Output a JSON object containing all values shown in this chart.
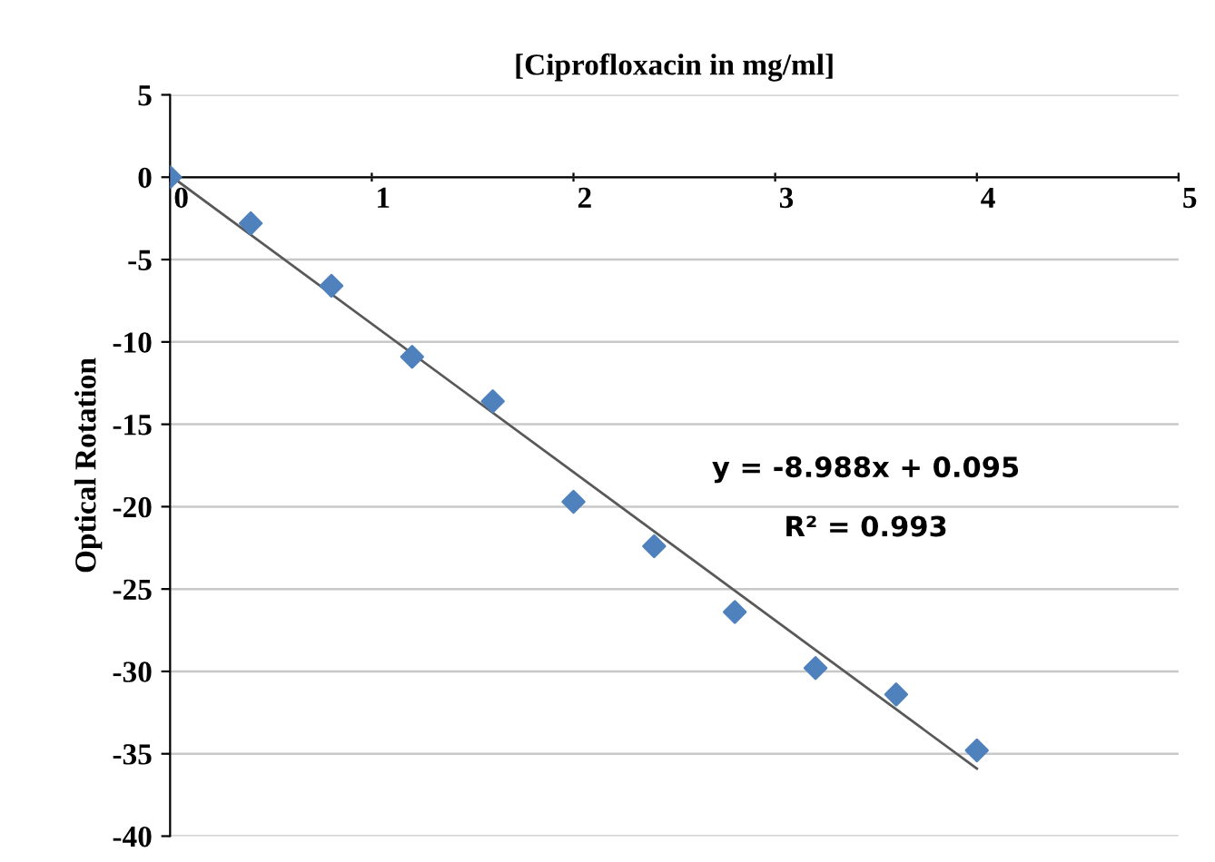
{
  "chart_data": {
    "type": "scatter",
    "title": "[Ciprofloxacin in mg/ml]",
    "ylabel": "Optical Rotation",
    "xlim": [
      0,
      5
    ],
    "xticks": [
      0,
      1,
      2,
      3,
      4,
      5
    ],
    "ylim": [
      -40,
      5
    ],
    "yticks": [
      -40,
      -35,
      -30,
      -25,
      -20,
      -15,
      -10,
      -5,
      0,
      5
    ],
    "grid": "y",
    "series": [
      {
        "marker": "diamond",
        "color": "#4f81bd",
        "x": [
          0,
          0.4,
          0.8,
          1.2,
          1.6,
          2.0,
          2.4,
          2.8,
          3.2,
          3.6,
          4.0
        ],
        "values": [
          0,
          -2.8,
          -6.6,
          -10.9,
          -13.6,
          -19.7,
          -22.4,
          -26.4,
          -29.8,
          -31.4,
          -34.8
        ]
      },
      {
        "type": "line",
        "marker": "none",
        "color": "#595959",
        "x": [
          0,
          4
        ],
        "values": [
          0.1,
          -35.9
        ]
      }
    ],
    "annotations": [
      "y = -8.988x + 0.095",
      "R² = 0.993"
    ]
  }
}
